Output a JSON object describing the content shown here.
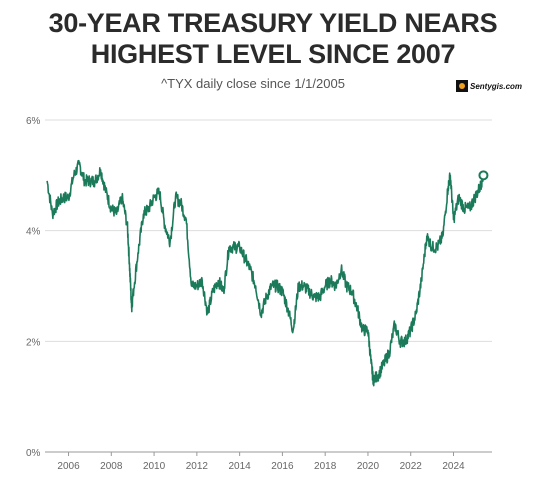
{
  "header": {
    "title_line1": "30-YEAR TREASURY YIELD NEARS",
    "title_line2": "HIGHEST LEVEL SINCE 2007",
    "subtitle": "^TYX daily close since 1/1/2005"
  },
  "watermark": {
    "text": "Sentygis.com"
  },
  "colors": {
    "line": "#1b7a5a",
    "grid": "#dddddd",
    "axis": "#999999",
    "text": "#666666"
  },
  "chart_data": {
    "type": "line",
    "title": "30-YEAR TREASURY YIELD NEARS HIGHEST LEVEL SINCE 2007",
    "subtitle": "^TYX daily close since 1/1/2005",
    "xlabel": "",
    "ylabel": "",
    "xlim": [
      2004.9,
      2025.8
    ],
    "ylim": [
      0,
      6
    ],
    "y_ticks": [
      "0%",
      "2%",
      "4%",
      "6%"
    ],
    "x_ticks": [
      "2006",
      "2008",
      "2010",
      "2012",
      "2014",
      "2016",
      "2018",
      "2020",
      "2022",
      "2024"
    ],
    "grid": "horizontal",
    "end_marker": true,
    "x": [
      2005.0,
      2005.25,
      2005.5,
      2005.75,
      2006.0,
      2006.25,
      2006.5,
      2006.75,
      2007.0,
      2007.25,
      2007.5,
      2007.75,
      2008.0,
      2008.25,
      2008.5,
      2008.75,
      2008.85,
      2008.95,
      2009.0,
      2009.25,
      2009.5,
      2009.75,
      2010.0,
      2010.25,
      2010.5,
      2010.75,
      2011.0,
      2011.25,
      2011.5,
      2011.75,
      2012.0,
      2012.25,
      2012.5,
      2012.75,
      2013.0,
      2013.25,
      2013.5,
      2013.75,
      2014.0,
      2014.25,
      2014.5,
      2014.75,
      2015.0,
      2015.25,
      2015.5,
      2015.75,
      2016.0,
      2016.25,
      2016.5,
      2016.75,
      2017.0,
      2017.25,
      2017.5,
      2017.75,
      2018.0,
      2018.25,
      2018.5,
      2018.75,
      2019.0,
      2019.25,
      2019.5,
      2019.75,
      2020.0,
      2020.15,
      2020.25,
      2020.5,
      2020.75,
      2021.0,
      2021.25,
      2021.5,
      2021.75,
      2022.0,
      2022.25,
      2022.5,
      2022.75,
      2023.0,
      2023.25,
      2023.5,
      2023.75,
      2023.85,
      2024.0,
      2024.25,
      2024.5,
      2024.75,
      2025.0,
      2025.25,
      2025.4
    ],
    "series": [
      {
        "values": [
          4.9,
          4.3,
          4.5,
          4.6,
          4.6,
          5.0,
          5.2,
          4.9,
          4.9,
          4.9,
          5.1,
          4.7,
          4.4,
          4.3,
          4.6,
          4.1,
          3.4,
          2.6,
          2.8,
          3.6,
          4.3,
          4.4,
          4.6,
          4.7,
          4.1,
          3.8,
          4.6,
          4.5,
          4.2,
          3.0,
          3.0,
          3.1,
          2.5,
          2.9,
          3.1,
          2.9,
          3.7,
          3.7,
          3.7,
          3.5,
          3.3,
          3.0,
          2.5,
          2.8,
          3.0,
          3.0,
          2.9,
          2.6,
          2.2,
          3.0,
          3.0,
          2.9,
          2.8,
          2.8,
          3.0,
          3.1,
          3.0,
          3.3,
          3.0,
          2.9,
          2.6,
          2.2,
          2.2,
          1.6,
          1.3,
          1.4,
          1.6,
          1.8,
          2.3,
          2.0,
          2.0,
          2.2,
          2.5,
          3.1,
          3.9,
          3.7,
          3.7,
          3.9,
          4.8,
          5.0,
          4.2,
          4.6,
          4.4,
          4.4,
          4.6,
          4.8,
          5.0
        ]
      }
    ]
  }
}
